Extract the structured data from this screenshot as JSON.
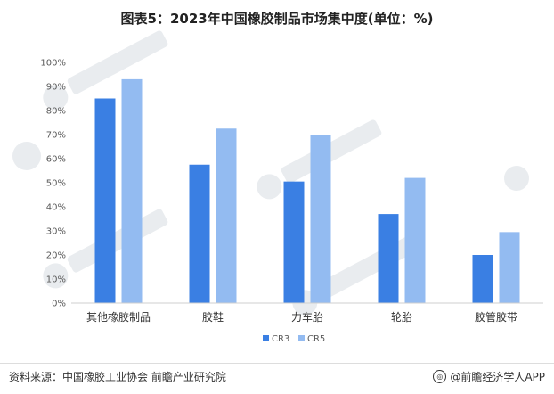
{
  "title": "图表5：2023年中国橡胶制品市场集中度(单位：%)",
  "footer": {
    "source": "资料来源：中国橡胶工业协会 前瞻产业研究院",
    "brand": "@前瞻经济学人APP"
  },
  "colors": {
    "cr3": "#3a7fe3",
    "cr5": "#93bbf1"
  },
  "chart_data": {
    "type": "bar",
    "title": "图表5：2023年中国橡胶制品市场集中度(单位：%)",
    "categories": [
      "其他橡胶制品",
      "胶鞋",
      "力车胎",
      "轮胎",
      "胶管胶带"
    ],
    "series": [
      {
        "name": "CR3",
        "values": [
          85,
          57.5,
          50.5,
          37,
          20
        ]
      },
      {
        "name": "CR5",
        "values": [
          93,
          72.5,
          70,
          52,
          29.5
        ]
      }
    ],
    "ylim": [
      0,
      100
    ],
    "yticks": [
      "0%",
      "10%",
      "20%",
      "30%",
      "40%",
      "50%",
      "60%",
      "70%",
      "80%",
      "90%",
      "100%"
    ],
    "legend": "bottom",
    "grid": false
  }
}
